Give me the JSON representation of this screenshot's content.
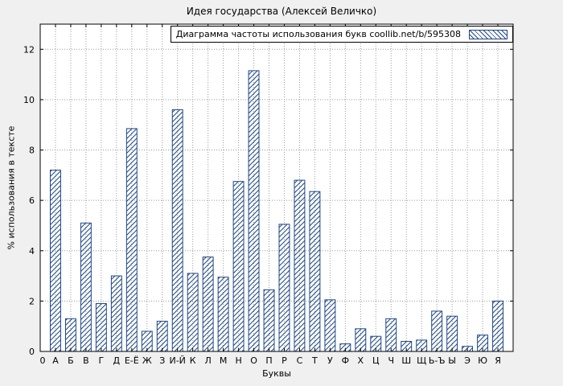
{
  "title": "Идея государства (Алексей Величко)",
  "chart_data": {
    "type": "bar",
    "title": "Идея государства (Алексей Величко)",
    "xlabel": "Буквы",
    "ylabel": "% использования в тексте",
    "legend_label": "Диаграмма частоты использования букв coollib.net/b/595308",
    "legend_position": "top-right",
    "x_zero_label": "0",
    "categories": [
      "А",
      "Б",
      "В",
      "Г",
      "Д",
      "Е-Ё",
      "Ж",
      "З",
      "И-Й",
      "К",
      "Л",
      "М",
      "Н",
      "О",
      "П",
      "Р",
      "С",
      "Т",
      "У",
      "Ф",
      "Х",
      "Ц",
      "Ч",
      "Ш",
      "Щ",
      "Ь-Ъ",
      "Ы",
      "Э",
      "Ю",
      "Я"
    ],
    "values": [
      7.2,
      1.3,
      5.1,
      1.9,
      3.0,
      8.85,
      0.8,
      1.2,
      9.6,
      3.1,
      3.75,
      2.95,
      6.75,
      11.15,
      2.45,
      5.05,
      6.8,
      6.35,
      2.05,
      0.3,
      0.9,
      0.6,
      1.3,
      0.4,
      0.45,
      1.6,
      1.4,
      0.2,
      0.65,
      2.0
    ],
    "yticks": [
      0,
      2,
      4,
      6,
      8,
      10,
      12
    ],
    "ylim": [
      0,
      13
    ],
    "grid": true,
    "hatch": "diagonal",
    "bar_color": "#1e4785",
    "grid_color": "#9a9a9a",
    "axis_color": "#000000",
    "plot_background": "#ffffff",
    "figure_background": "#f0f0f0"
  }
}
